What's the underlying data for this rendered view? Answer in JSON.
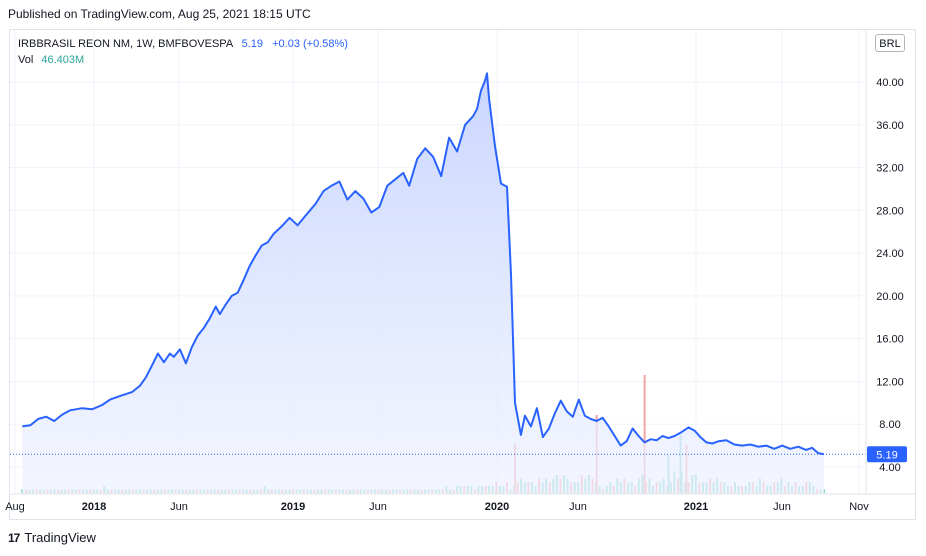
{
  "header": {
    "published": "Published on TradingView.com, Aug 25, 2021 18:15 UTC"
  },
  "legend": {
    "symbol": "IRBBRASIL REON NM, 1W, BMFBOVESPA",
    "price": "5.19",
    "change": "+0.03 (+0.58%)",
    "vol_label": "Vol",
    "vol_value": "46.403M"
  },
  "currency_button": "BRL",
  "footer": {
    "brand": "TradingView",
    "logo": "17"
  },
  "colors": {
    "line": "#2962ff",
    "area": "#d6e0ff",
    "vol_up": "#7fd3c8",
    "vol_down": "#f4a4a4",
    "last_price_bg": "#2962ff"
  },
  "chart_data": {
    "type": "area",
    "title": "IRBBRASIL REON NM, 1W, BMFBOVESPA",
    "ylabel": "",
    "xlabel": "",
    "y_ticks": [
      "4.00",
      "8.00",
      "12.00",
      "16.00",
      "20.00",
      "24.00",
      "28.00",
      "32.00",
      "36.00",
      "40.00"
    ],
    "x_ticks": [
      "Aug",
      "2018",
      "Jun",
      "2019",
      "Jun",
      "2020",
      "Jun",
      "2021",
      "Jun",
      "Nov"
    ],
    "ylim": [
      0.5,
      44.6
    ],
    "last_price": "5.19",
    "grid": true,
    "series": [
      {
        "points": [
          [
            2017.62,
            7.8
          ],
          [
            2017.66,
            7.9
          ],
          [
            2017.7,
            8.5
          ],
          [
            2017.74,
            8.7
          ],
          [
            2017.78,
            8.3
          ],
          [
            2017.82,
            8.9
          ],
          [
            2017.86,
            9.3
          ],
          [
            2017.92,
            9.5
          ],
          [
            2017.97,
            9.4
          ],
          [
            2018.02,
            9.8
          ],
          [
            2018.06,
            10.3
          ],
          [
            2018.12,
            10.7
          ],
          [
            2018.17,
            11.0
          ],
          [
            2018.21,
            11.6
          ],
          [
            2018.24,
            12.4
          ],
          [
            2018.27,
            13.5
          ],
          [
            2018.3,
            14.6
          ],
          [
            2018.33,
            13.8
          ],
          [
            2018.36,
            14.6
          ],
          [
            2018.38,
            14.3
          ],
          [
            2018.41,
            15.0
          ],
          [
            2018.44,
            13.7
          ],
          [
            2018.47,
            15.2
          ],
          [
            2018.5,
            16.3
          ],
          [
            2018.53,
            17.0
          ],
          [
            2018.56,
            17.9
          ],
          [
            2018.59,
            19.0
          ],
          [
            2018.61,
            18.3
          ],
          [
            2018.64,
            19.2
          ],
          [
            2018.67,
            20.0
          ],
          [
            2018.7,
            20.3
          ],
          [
            2018.73,
            21.5
          ],
          [
            2018.76,
            22.8
          ],
          [
            2018.79,
            23.8
          ],
          [
            2018.82,
            24.7
          ],
          [
            2018.85,
            25.0
          ],
          [
            2018.88,
            25.8
          ],
          [
            2018.92,
            26.5
          ],
          [
            2018.96,
            27.3
          ],
          [
            2019.0,
            26.6
          ],
          [
            2019.04,
            27.5
          ],
          [
            2019.09,
            28.6
          ],
          [
            2019.13,
            29.8
          ],
          [
            2019.17,
            30.3
          ],
          [
            2019.21,
            30.7
          ],
          [
            2019.25,
            29.0
          ],
          [
            2019.29,
            29.8
          ],
          [
            2019.33,
            29.1
          ],
          [
            2019.37,
            27.8
          ],
          [
            2019.41,
            28.3
          ],
          [
            2019.45,
            30.3
          ],
          [
            2019.49,
            30.9
          ],
          [
            2019.53,
            31.5
          ],
          [
            2019.56,
            30.3
          ],
          [
            2019.6,
            32.8
          ],
          [
            2019.64,
            33.8
          ],
          [
            2019.68,
            33.0
          ],
          [
            2019.72,
            31.2
          ],
          [
            2019.76,
            34.8
          ],
          [
            2019.8,
            33.5
          ],
          [
            2019.84,
            36.0
          ],
          [
            2019.88,
            36.8
          ],
          [
            2019.9,
            37.5
          ],
          [
            2019.92,
            39.2
          ],
          [
            2019.94,
            40.1
          ],
          [
            2019.95,
            40.8
          ],
          [
            2019.96,
            38.5
          ],
          [
            2019.99,
            34.0
          ],
          [
            2020.02,
            30.5
          ],
          [
            2020.05,
            30.2
          ],
          [
            2020.07,
            22.0
          ],
          [
            2020.09,
            10.0
          ],
          [
            2020.12,
            7.0
          ],
          [
            2020.14,
            8.8
          ],
          [
            2020.17,
            7.8
          ],
          [
            2020.2,
            9.5
          ],
          [
            2020.23,
            6.8
          ],
          [
            2020.26,
            7.6
          ],
          [
            2020.29,
            9.0
          ],
          [
            2020.32,
            10.2
          ],
          [
            2020.35,
            9.2
          ],
          [
            2020.38,
            8.7
          ],
          [
            2020.41,
            10.3
          ],
          [
            2020.44,
            8.8
          ],
          [
            2020.47,
            8.5
          ],
          [
            2020.5,
            8.3
          ],
          [
            2020.53,
            8.6
          ],
          [
            2020.56,
            7.8
          ],
          [
            2020.59,
            6.9
          ],
          [
            2020.62,
            6.0
          ],
          [
            2020.65,
            6.4
          ],
          [
            2020.68,
            7.6
          ],
          [
            2020.71,
            6.9
          ],
          [
            2020.74,
            6.3
          ],
          [
            2020.77,
            6.6
          ],
          [
            2020.8,
            6.5
          ],
          [
            2020.83,
            6.9
          ],
          [
            2020.86,
            6.7
          ],
          [
            2020.89,
            6.9
          ],
          [
            2020.92,
            7.2
          ],
          [
            2020.96,
            7.7
          ],
          [
            2020.99,
            7.4
          ],
          [
            2021.02,
            6.8
          ],
          [
            2021.05,
            6.3
          ],
          [
            2021.08,
            6.2
          ],
          [
            2021.11,
            6.4
          ],
          [
            2021.15,
            6.5
          ],
          [
            2021.19,
            6.1
          ],
          [
            2021.23,
            6.0
          ],
          [
            2021.27,
            6.1
          ],
          [
            2021.31,
            5.9
          ],
          [
            2021.35,
            6.0
          ],
          [
            2021.39,
            5.7
          ],
          [
            2021.43,
            6.0
          ],
          [
            2021.47,
            5.7
          ],
          [
            2021.51,
            5.9
          ],
          [
            2021.55,
            5.6
          ],
          [
            2021.58,
            5.8
          ],
          [
            2021.61,
            5.3
          ],
          [
            2021.64,
            5.2
          ]
        ]
      }
    ],
    "volume": [
      1,
      1,
      1,
      1,
      1,
      1,
      1,
      1,
      1,
      1,
      1,
      1,
      1,
      1,
      1,
      1,
      1,
      1,
      1,
      1,
      1,
      1,
      1,
      2,
      1,
      1,
      1,
      1,
      1,
      1,
      1,
      1,
      1,
      1,
      1,
      1,
      1,
      1,
      1,
      1,
      1,
      1,
      1,
      1,
      1,
      1,
      1,
      1,
      1,
      1,
      1,
      1,
      1,
      1,
      1,
      1,
      1,
      1,
      1,
      1,
      1,
      1,
      1,
      1,
      1,
      1,
      1,
      1,
      2,
      1,
      1,
      1,
      1,
      1,
      1,
      1,
      1,
      1,
      1,
      1,
      1,
      1,
      1,
      1,
      1,
      1,
      1,
      1,
      1,
      1,
      1,
      1,
      1,
      1,
      1,
      1,
      1,
      1,
      1,
      1,
      1,
      1,
      1,
      1,
      1,
      1,
      1,
      1,
      1,
      1,
      1,
      1,
      1,
      1,
      1,
      1,
      1,
      1,
      1,
      2,
      1,
      1,
      2,
      2,
      2,
      2,
      2,
      1,
      2,
      2,
      2,
      2,
      2,
      3,
      2,
      2,
      3,
      1,
      2,
      3,
      4,
      3,
      3,
      3,
      2,
      4,
      3,
      4,
      3,
      4,
      5,
      4,
      5,
      4,
      3,
      3,
      3,
      5,
      4,
      5,
      4,
      3,
      2,
      1,
      2,
      3,
      2,
      4,
      3,
      4,
      3,
      3,
      2,
      4,
      5,
      3,
      4,
      2,
      3,
      3,
      4,
      2,
      3,
      6,
      4,
      6,
      3,
      3,
      5,
      5,
      3,
      3,
      3,
      4,
      3,
      4,
      3,
      3,
      2,
      2,
      3,
      2,
      2,
      2,
      3,
      3,
      2,
      4,
      3,
      2,
      2,
      3,
      3,
      4,
      2,
      3,
      2,
      3,
      2,
      2,
      3,
      3,
      2,
      1,
      1,
      1
    ]
  }
}
